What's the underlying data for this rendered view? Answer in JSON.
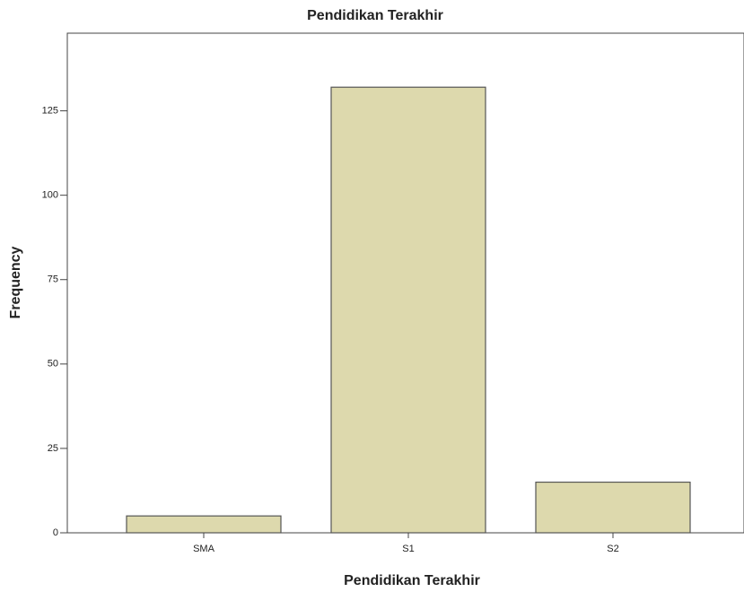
{
  "chart_data": {
    "type": "bar",
    "title": "Pendidikan Terakhir",
    "x_label": "Pendidikan Terakhir",
    "y_label": "Frequency",
    "categories": [
      "SMA",
      "S1",
      "S2"
    ],
    "values": [
      5,
      132,
      15
    ],
    "color": "#ddd9ad",
    "ylim": [
      0,
      148
    ],
    "yticks": [
      0,
      25,
      50,
      75,
      100,
      125
    ]
  }
}
